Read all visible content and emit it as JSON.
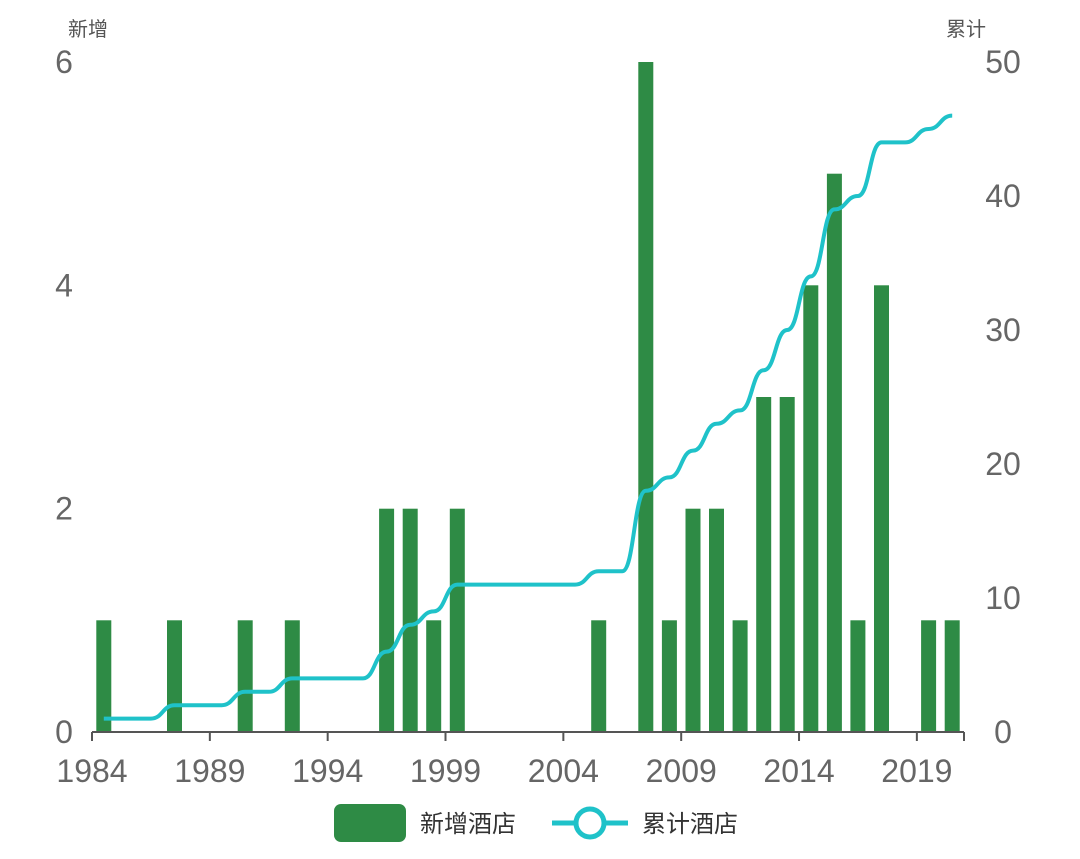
{
  "chart_data": {
    "type": "bar",
    "x": [
      1984,
      1985,
      1986,
      1987,
      1988,
      1989,
      1990,
      1991,
      1992,
      1993,
      1994,
      1995,
      1996,
      1997,
      1998,
      1999,
      2000,
      2001,
      2002,
      2003,
      2004,
      2005,
      2006,
      2007,
      2008,
      2009,
      2010,
      2011,
      2012,
      2013,
      2014,
      2015,
      2016,
      2017,
      2018,
      2019,
      2020
    ],
    "x_ticks": [
      "1984",
      "1989",
      "1994",
      "1999",
      "2004",
      "2009",
      "2014",
      "2019"
    ],
    "series": [
      {
        "name": "新增酒店",
        "type": "bar",
        "axis": "left",
        "color": "#2e8b45",
        "values": [
          1,
          0,
          0,
          1,
          0,
          0,
          1,
          0,
          1,
          0,
          0,
          0,
          2,
          2,
          1,
          2,
          0,
          0,
          0,
          0,
          0,
          1,
          0,
          6,
          1,
          2,
          2,
          1,
          3,
          3,
          4,
          5,
          1,
          4,
          0,
          1,
          1
        ]
      },
      {
        "name": "累计酒店",
        "type": "line",
        "axis": "right",
        "color": "#1fc2c9",
        "values": [
          1,
          1,
          1,
          2,
          2,
          2,
          3,
          3,
          4,
          4,
          4,
          4,
          6,
          8,
          9,
          11,
          11,
          11,
          11,
          11,
          11,
          12,
          12,
          18,
          19,
          21,
          23,
          24,
          27,
          30,
          34,
          39,
          40,
          44,
          44,
          45,
          46
        ]
      }
    ],
    "y_left": {
      "label": "新增",
      "ylim": [
        0,
        6
      ],
      "ticks": [
        "0",
        "2",
        "4",
        "6"
      ]
    },
    "y_right": {
      "label": "累计",
      "ylim": [
        0,
        50
      ],
      "ticks": [
        "0",
        "10",
        "20",
        "30",
        "40",
        "50"
      ]
    },
    "legend": {
      "placement": "bottom-center"
    },
    "grid": false
  }
}
